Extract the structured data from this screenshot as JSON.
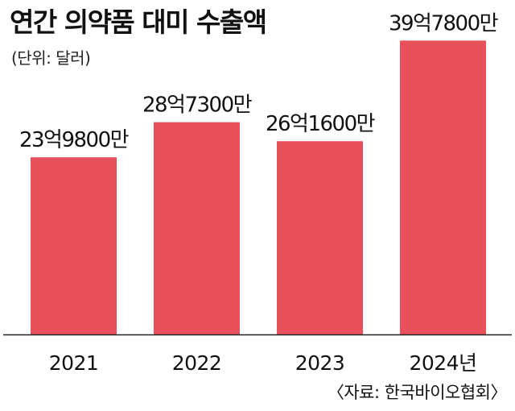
{
  "title": "연간 의약품 대미 수출액",
  "unit_note": "(단위: 달러)",
  "source_note": "〈자료: 한국바이오협회〉",
  "colors": {
    "bar": "#E8505B",
    "text": "#111111",
    "baseline": "#222222"
  },
  "chart_data": {
    "type": "bar",
    "title": "연간 의약품 대미 수출액",
    "xlabel": "",
    "ylabel": "",
    "unit": "달러",
    "categories": [
      "2021",
      "2022",
      "2023",
      "2024년"
    ],
    "values": [
      2398000000,
      2873000000,
      2616000000,
      3978000000
    ],
    "data_labels": [
      "23억9800만",
      "28억7300만",
      "26억1600만",
      "39억7800만"
    ],
    "ylim": [
      0,
      4200000000
    ],
    "grid": false,
    "legend": "none"
  }
}
